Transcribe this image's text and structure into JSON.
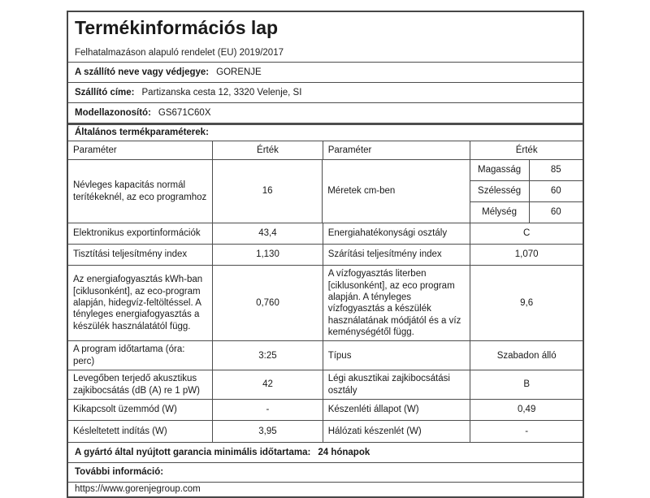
{
  "document": {
    "title": "Termékinformációs lap",
    "regulation": "Felhatalmazáson alapuló rendelet (EU) 2019/2017",
    "supplier": {
      "name_label": "A szállító neve vagy védjegye:",
      "name": "GORENJE",
      "address_label": "Szállító címe:",
      "address": "Partizanska cesta 12, 3320 Velenje, SI",
      "model_label": "Modellazonosító:",
      "model": "GS671C60X"
    },
    "general_section": {
      "title": "Általános termékparaméterek:",
      "headers": {
        "param_left": "Paraméter",
        "value_left": "Érték",
        "param_right": "Paraméter",
        "value_right": "Érték"
      },
      "capacity_row": {
        "param": "Névleges kapacitás normál terítékeknél, az eco programhoz",
        "value": "16",
        "dims_param": "Méretek cm-ben",
        "dims": [
          {
            "label": "Magasság",
            "value": "85"
          },
          {
            "label": "Szélesség",
            "value": "60"
          },
          {
            "label": "Mélység",
            "value": "60"
          }
        ]
      },
      "rows": [
        {
          "lp": "Elektronikus exportinformációk",
          "lv": "43,4",
          "rp": "Energiahatékonysági osztály",
          "rv": "C"
        },
        {
          "lp": "Tisztítási teljesítmény index",
          "lv": "1,130",
          "rp": "Szárítási teljesítmény index",
          "rv": "1,070"
        },
        {
          "lp": "Az energiafogyasztás kWh-ban [ciklusonként], az eco-program alapján, hidegvíz-feltöltéssel. A tényleges energiafogyasztás a készülék használatától függ.",
          "lv": "0,760",
          "rp": "A vízfogyasztás literben [ciklusonként], az eco program alapján. A tényleges vízfogyasztás a készülék használatának módjától és a víz keménységétől függ.",
          "rv": "9,6"
        },
        {
          "lp": "A program időtartama (óra: perc)",
          "lv": "3:25",
          "rp": "Típus",
          "rv": "Szabadon álló"
        },
        {
          "lp": "Levegőben terjedő akusztikus zajkibocsátás (dB (A) re 1 pW)",
          "lv": "42",
          "rp": "Légi akusztikai zajkibocsátási osztály",
          "rv": "B"
        },
        {
          "lp": "Kikapcsolt üzemmód (W)",
          "lv": "-",
          "rp": "Készenléti állapot (W)",
          "rv": "0,49"
        },
        {
          "lp": "Késleltetett indítás (W)",
          "lv": "3,95",
          "rp": "Hálózati készenlét (W)",
          "rv": "-"
        }
      ]
    },
    "footer": {
      "warranty_label": "A gyártó által nyújtott garancia minimális időtartama:",
      "warranty_value": "24 hónapok",
      "more_info_label": "További információ:",
      "website": "https://www.gorenjegroup.com"
    }
  }
}
